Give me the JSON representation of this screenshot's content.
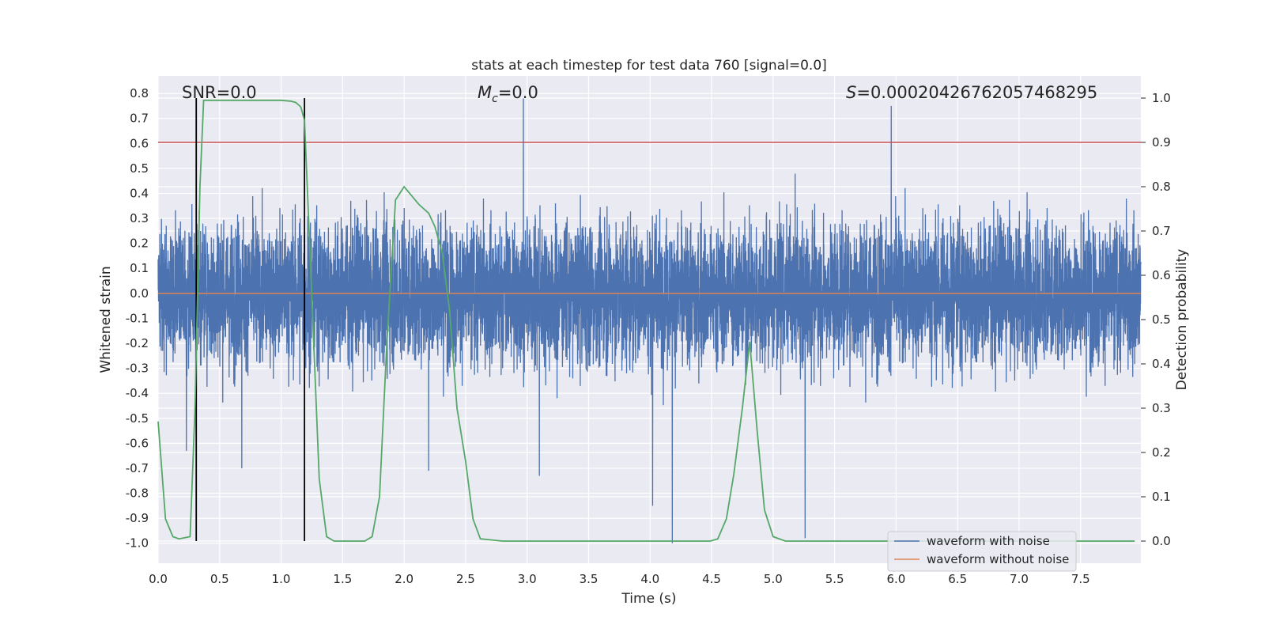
{
  "chart_data": {
    "type": "line",
    "title": "stats at each timestep for test data 760 [signal=0.0]",
    "xlabel": "Time (s)",
    "ylabel": "Whitened strain",
    "y2label": "Detection probability",
    "xlim": [
      0.0,
      7.99
    ],
    "ylim": [
      -1.08,
      0.87
    ],
    "y2lim": [
      -0.05,
      1.05
    ],
    "xticks": [
      "0.0",
      "0.5",
      "1.0",
      "1.5",
      "2.0",
      "2.5",
      "3.0",
      "3.5",
      "4.0",
      "4.5",
      "5.0",
      "5.5",
      "6.0",
      "6.5",
      "7.0",
      "7.5"
    ],
    "xtick_values": [
      0,
      0.5,
      1.0,
      1.5,
      2.0,
      2.5,
      3.0,
      3.5,
      4.0,
      4.5,
      5.0,
      5.5,
      6.0,
      6.5,
      7.0,
      7.5
    ],
    "yticks": [
      "0.8",
      "0.7",
      "0.6",
      "0.5",
      "0.4",
      "0.3",
      "0.2",
      "0.1",
      "0.0",
      "-0.1",
      "-0.2",
      "-0.3",
      "-0.4",
      "-0.5",
      "-0.6",
      "-0.7",
      "-0.8",
      "-0.9",
      "-1.0"
    ],
    "ytick_values": [
      0.8,
      0.7,
      0.6,
      0.5,
      0.4,
      0.3,
      0.2,
      0.1,
      0.0,
      -0.1,
      -0.2,
      -0.3,
      -0.4,
      -0.5,
      -0.6,
      -0.7,
      -0.8,
      -0.9,
      -1.0
    ],
    "y2ticks": [
      "1.0",
      "0.9",
      "0.8",
      "0.7",
      "0.6",
      "0.5",
      "0.4",
      "0.3",
      "0.2",
      "0.1",
      "0.0"
    ],
    "y2tick_values": [
      1.0,
      0.9,
      0.8,
      0.7,
      0.6,
      0.5,
      0.4,
      0.3,
      0.2,
      0.1,
      0.0
    ],
    "annotations": {
      "snr": "SNR=0.0",
      "mc_symbol": "M",
      "mc_sub": "c",
      "mc_value": "=0.0",
      "s_symbol": "S",
      "s_value": "=0.00020426762057468295"
    },
    "legend": {
      "position": "lower right",
      "entries": [
        {
          "label": "waveform with noise",
          "color": "#4c72b0"
        },
        {
          "label": "waveform without noise",
          "color": "#dd8452"
        }
      ]
    },
    "noise": {
      "name": "waveform with noise",
      "color": "#4c72b0",
      "n_points": 8000,
      "typical_envelope": [
        -0.45,
        0.5
      ],
      "spikes": [
        {
          "x": 2.97,
          "y": 0.78
        },
        {
          "x": 5.96,
          "y": 0.75
        },
        {
          "x": 4.18,
          "y": -1.0
        },
        {
          "x": 5.26,
          "y": -0.98
        },
        {
          "x": 4.02,
          "y": -0.85
        },
        {
          "x": 0.23,
          "y": -0.63
        },
        {
          "x": 0.68,
          "y": -0.7
        },
        {
          "x": 2.2,
          "y": -0.71
        },
        {
          "x": 3.1,
          "y": -0.73
        }
      ]
    },
    "clean_waveform": {
      "name": "waveform without noise",
      "color": "#dd8452",
      "value": 0.0
    },
    "threshold": {
      "y2": 0.9,
      "color": "#c44e52"
    },
    "event_markers": {
      "x": [
        0.31,
        1.19
      ],
      "y2_range": [
        0.0,
        1.0
      ],
      "color": "#000000"
    },
    "detection_probability": {
      "color": "#55a868",
      "x": [
        0.0,
        0.06,
        0.12,
        0.17,
        0.26,
        0.3,
        0.34,
        0.37,
        0.5,
        1.0,
        1.08,
        1.12,
        1.16,
        1.19,
        1.25,
        1.31,
        1.37,
        1.43,
        1.55,
        1.68,
        1.74,
        1.8,
        1.86,
        1.93,
        2.0,
        2.06,
        2.12,
        2.2,
        2.25,
        2.31,
        2.37,
        2.43,
        2.5,
        2.56,
        2.62,
        2.8,
        4.37,
        4.43,
        4.49,
        4.55,
        4.62,
        4.68,
        4.75,
        4.81,
        4.87,
        4.93,
        5.0,
        5.1,
        7.94
      ],
      "y": [
        0.27,
        0.05,
        0.01,
        0.005,
        0.01,
        0.3,
        0.8,
        0.995,
        0.995,
        0.995,
        0.993,
        0.99,
        0.98,
        0.95,
        0.55,
        0.14,
        0.01,
        0.0,
        0.0,
        0.0,
        0.01,
        0.1,
        0.45,
        0.77,
        0.8,
        0.78,
        0.76,
        0.74,
        0.71,
        0.65,
        0.52,
        0.3,
        0.18,
        0.05,
        0.005,
        0.0,
        0.0,
        0.0,
        0.0,
        0.005,
        0.05,
        0.15,
        0.3,
        0.45,
        0.25,
        0.07,
        0.01,
        0.0,
        0.0
      ]
    }
  }
}
